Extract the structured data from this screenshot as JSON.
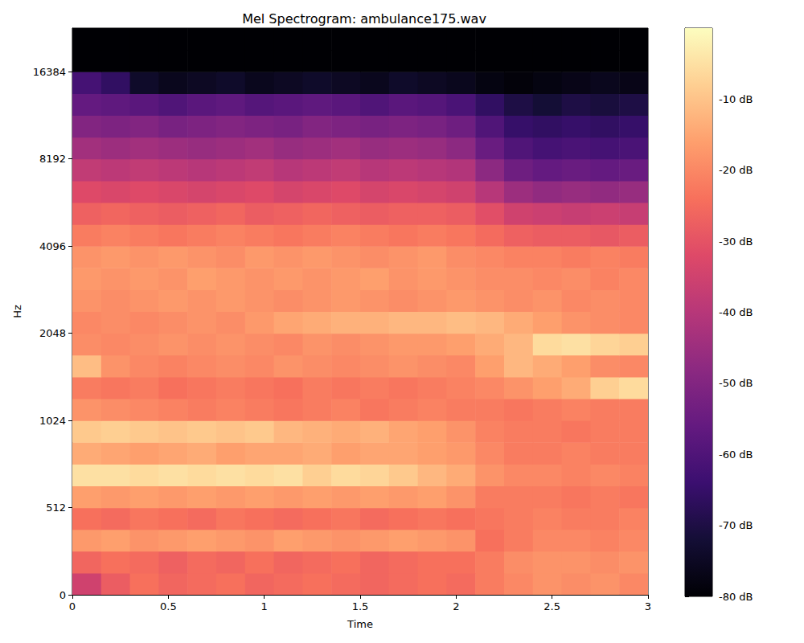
{
  "chart_data": {
    "type": "heatmap",
    "title": "Mel Spectrogram: ambulance175.wav",
    "x_label": "Time",
    "y_label": "Hz",
    "x": [
      0,
      0.15,
      0.3,
      0.45,
      0.6,
      0.75,
      0.9,
      1.05,
      1.2,
      1.35,
      1.5,
      1.65,
      1.8,
      1.95,
      2.1,
      2.25,
      2.4,
      2.55,
      2.7,
      2.85,
      3.0
    ],
    "xlim": [
      0,
      3
    ],
    "xticks": [
      0,
      0.5,
      1,
      1.5,
      2,
      2.5,
      3
    ],
    "y_categories": [
      0,
      null,
      null,
      null,
      512,
      null,
      null,
      null,
      1024,
      null,
      null,
      null,
      2048,
      null,
      null,
      null,
      4096,
      null,
      null,
      null,
      8192,
      null,
      null,
      null,
      16384,
      null,
      null
    ],
    "values": [
      [
        -35,
        -28,
        -24,
        -26,
        -25,
        -24,
        -26,
        -25,
        -24,
        -25,
        -26,
        -25,
        -24,
        -25,
        -22,
        -20,
        -18,
        -19,
        -18,
        -20
      ],
      [
        -26,
        -24,
        -25,
        -27,
        -25,
        -26,
        -24,
        -26,
        -25,
        -24,
        -26,
        -25,
        -24,
        -24,
        -22,
        -19,
        -18,
        -18,
        -19,
        -18
      ],
      [
        -17,
        -16,
        -18,
        -17,
        -16,
        -17,
        -18,
        -16,
        -17,
        -18,
        -17,
        -16,
        -17,
        -18,
        -24,
        -22,
        -20,
        -20,
        -21,
        -20
      ],
      [
        -24,
        -25,
        -23,
        -24,
        -25,
        -23,
        -24,
        -25,
        -24,
        -23,
        -25,
        -24,
        -23,
        -24,
        -23,
        -22,
        -21,
        -22,
        -22,
        -21
      ],
      [
        -16,
        -17,
        -16,
        -17,
        -16,
        -17,
        -16,
        -17,
        -16,
        -17,
        -16,
        -17,
        -16,
        -18,
        -22,
        -22,
        -22,
        -23,
        -22,
        -23
      ],
      [
        -5,
        -5,
        -6,
        -5,
        -6,
        -5,
        -6,
        -5,
        -8,
        -6,
        -7,
        -9,
        -12,
        -14,
        -18,
        -20,
        -20,
        -21,
        -20,
        -21
      ],
      [
        -14,
        -15,
        -16,
        -15,
        -14,
        -16,
        -15,
        -15,
        -14,
        -16,
        -15,
        -15,
        -16,
        -17,
        -20,
        -22,
        -22,
        -21,
        -22,
        -22
      ],
      [
        -9,
        -8,
        -9,
        -10,
        -9,
        -10,
        -9,
        -12,
        -13,
        -14,
        -13,
        -15,
        -16,
        -18,
        -21,
        -22,
        -22,
        -23,
        -22,
        -22
      ],
      [
        -18,
        -19,
        -20,
        -21,
        -22,
        -21,
        -22,
        -23,
        -22,
        -21,
        -23,
        -22,
        -21,
        -22,
        -22,
        -23,
        -22,
        -21,
        -22,
        -22
      ],
      [
        -22,
        -23,
        -22,
        -24,
        -23,
        -22,
        -23,
        -24,
        -22,
        -23,
        -22,
        -23,
        -22,
        -21,
        -20,
        -18,
        -16,
        -14,
        -8,
        -6
      ],
      [
        -11,
        -18,
        -20,
        -21,
        -20,
        -19,
        -20,
        -18,
        -19,
        -20,
        -19,
        -18,
        -19,
        -20,
        -16,
        -12,
        -14,
        -16,
        -19,
        -20
      ],
      [
        -19,
        -20,
        -19,
        -18,
        -19,
        -18,
        -19,
        -20,
        -18,
        -19,
        -18,
        -17,
        -17,
        -16,
        -14,
        -12,
        -6,
        -5,
        -7,
        -8
      ],
      [
        -20,
        -19,
        -20,
        -19,
        -18,
        -19,
        -17,
        -15,
        -14,
        -13,
        -13,
        -12,
        -12,
        -11,
        -12,
        -14,
        -16,
        -18,
        -19,
        -20
      ],
      [
        -18,
        -19,
        -18,
        -17,
        -18,
        -17,
        -18,
        -19,
        -18,
        -17,
        -18,
        -19,
        -18,
        -17,
        -18,
        -19,
        -18,
        -20,
        -19,
        -20
      ],
      [
        -17,
        -18,
        -17,
        -18,
        -16,
        -17,
        -18,
        -17,
        -18,
        -17,
        -16,
        -18,
        -17,
        -18,
        -19,
        -19,
        -20,
        -19,
        -21,
        -20
      ],
      [
        -18,
        -17,
        -18,
        -17,
        -18,
        -19,
        -17,
        -18,
        -17,
        -18,
        -19,
        -18,
        -17,
        -19,
        -20,
        -21,
        -21,
        -22,
        -21,
        -22
      ],
      [
        -22,
        -21,
        -22,
        -23,
        -22,
        -21,
        -22,
        -23,
        -22,
        -21,
        -22,
        -23,
        -22,
        -23,
        -25,
        -27,
        -28,
        -28,
        -29,
        -28
      ],
      [
        -27,
        -26,
        -27,
        -28,
        -27,
        -26,
        -28,
        -27,
        -26,
        -27,
        -28,
        -27,
        -27,
        -28,
        -31,
        -35,
        -36,
        -37,
        -36,
        -37
      ],
      [
        -32,
        -33,
        -32,
        -33,
        -34,
        -33,
        -32,
        -34,
        -33,
        -32,
        -34,
        -33,
        -34,
        -35,
        -40,
        -45,
        -47,
        -46,
        -47,
        -46
      ],
      [
        -38,
        -39,
        -38,
        -39,
        -40,
        -39,
        -38,
        -40,
        -39,
        -38,
        -40,
        -39,
        -40,
        -41,
        -48,
        -54,
        -56,
        -55,
        -56,
        -55
      ],
      [
        -44,
        -45,
        -44,
        -45,
        -46,
        -45,
        -44,
        -46,
        -45,
        -44,
        -46,
        -45,
        -46,
        -48,
        -55,
        -60,
        -62,
        -61,
        -62,
        -61
      ],
      [
        -50,
        -51,
        -50,
        -52,
        -51,
        -50,
        -51,
        -52,
        -50,
        -51,
        -52,
        -51,
        -52,
        -54,
        -60,
        -65,
        -66,
        -65,
        -66,
        -65
      ],
      [
        -56,
        -57,
        -58,
        -60,
        -58,
        -57,
        -59,
        -58,
        -57,
        -58,
        -60,
        -58,
        -59,
        -61,
        -66,
        -70,
        -72,
        -70,
        -71,
        -70
      ],
      [
        -62,
        -66,
        -74,
        -76,
        -75,
        -74,
        -76,
        -75,
        -74,
        -75,
        -76,
        -74,
        -75,
        -76,
        -78,
        -79,
        -78,
        -77,
        -76,
        -77
      ],
      [
        -80,
        -80,
        -80,
        -80,
        -80,
        -80,
        -80,
        -80,
        -80,
        -80,
        -80,
        -80,
        -80,
        -80,
        -80,
        -80,
        -80,
        -80,
        -80,
        -80
      ],
      [
        -80,
        -80,
        -80,
        -80,
        -80,
        -80,
        -80,
        -80,
        -80,
        -80,
        -80,
        -80,
        -80,
        -80,
        -80,
        -80,
        -80,
        -80,
        -80,
        -80
      ]
    ],
    "colorbar": {
      "range": [
        -80,
        0
      ],
      "ticks": [
        {
          "value": -10,
          "label": "-10 dB"
        },
        {
          "value": -20,
          "label": "-20 dB"
        },
        {
          "value": -30,
          "label": "-30 dB"
        },
        {
          "value": -40,
          "label": "-40 dB"
        },
        {
          "value": -50,
          "label": "-50 dB"
        },
        {
          "value": -60,
          "label": "-60 dB"
        },
        {
          "value": -70,
          "label": "-70 dB"
        },
        {
          "value": -80,
          "label": "-80 dB"
        }
      ]
    }
  }
}
